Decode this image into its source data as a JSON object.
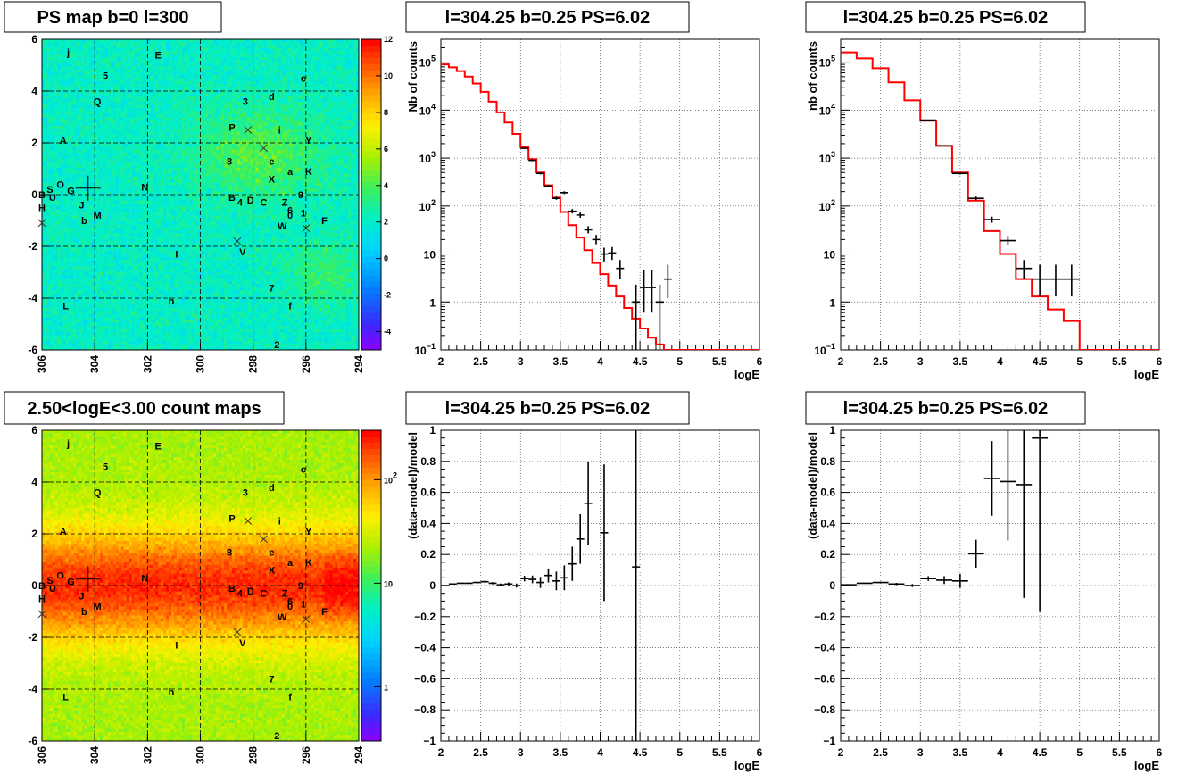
{
  "panels": {
    "ps_map": {
      "title": "PS map b=0 l=300",
      "colorbar_ticks": [
        "12",
        "10",
        "8",
        "6",
        "4",
        "2",
        "0",
        "-2",
        "-4"
      ],
      "colorbar_range": [
        -5,
        12
      ]
    },
    "count_map": {
      "title": "2.50<logE<3.00 count maps",
      "colorbar_ticks": [
        {
          "label": "10",
          "sup": "2",
          "value": 100
        },
        {
          "label": "10",
          "sup": "",
          "value": 10
        },
        {
          "label": "1",
          "sup": "",
          "value": 1
        }
      ],
      "colorbar_range": [
        0.3,
        300
      ]
    },
    "spectrum_a": {
      "title": "l=304.25 b=0.25 PS=6.02",
      "ylabel": "Nb of counts",
      "xlabel": "logE"
    },
    "spectrum_b": {
      "title": "l=304.25 b=0.25 PS=6.02",
      "ylabel": "nb of counts",
      "xlabel": "logE"
    },
    "resid_a": {
      "title": "l=304.25 b=0.25 PS=6.02",
      "ylabel": "(data-model)/model",
      "xlabel": "logE"
    },
    "resid_b": {
      "title": "l=304.25 b=0.25 PS=6.02",
      "ylabel": "(data-model)/model",
      "xlabel": "logE"
    }
  },
  "map_axes": {
    "x_ticks": [
      "306",
      "304",
      "302",
      "300",
      "298",
      "296",
      "294"
    ],
    "y_ticks": [
      "6",
      "4",
      "2",
      "0",
      "-2",
      "-4",
      "-6"
    ],
    "xlim": [
      306,
      294
    ],
    "ylim": [
      -6,
      6
    ]
  },
  "sources": [
    {
      "t": "j",
      "l": 305.0,
      "b": 5.5
    },
    {
      "t": "E",
      "l": 301.6,
      "b": 5.4
    },
    {
      "t": "5",
      "l": 303.6,
      "b": 4.6
    },
    {
      "t": "c",
      "l": 296.1,
      "b": 4.5
    },
    {
      "t": "Q",
      "l": 303.9,
      "b": 3.6
    },
    {
      "t": "3",
      "l": 298.3,
      "b": 3.6
    },
    {
      "t": "d",
      "l": 297.3,
      "b": 3.8
    },
    {
      "t": "P",
      "l": 298.8,
      "b": 2.6
    },
    {
      "t": "i",
      "l": 297.0,
      "b": 2.5
    },
    {
      "t": "A",
      "l": 305.2,
      "b": 2.1
    },
    {
      "t": "Y",
      "l": 295.9,
      "b": 2.1
    },
    {
      "t": "8",
      "l": 298.9,
      "b": 1.3
    },
    {
      "t": "e",
      "l": 297.3,
      "b": 1.3
    },
    {
      "t": "a",
      "l": 296.6,
      "b": 0.9
    },
    {
      "t": "K",
      "l": 295.9,
      "b": 0.9
    },
    {
      "t": "X",
      "l": 297.3,
      "b": 0.6
    },
    {
      "t": "O",
      "l": 305.3,
      "b": 0.4
    },
    {
      "t": "N",
      "l": 302.1,
      "b": 0.3
    },
    {
      "t": "B",
      "l": 306.0,
      "b": 0.0
    },
    {
      "t": "S",
      "l": 305.7,
      "b": 0.2
    },
    {
      "t": "G",
      "l": 304.9,
      "b": 0.15
    },
    {
      "t": "U",
      "l": 305.6,
      "b": -0.1
    },
    {
      "t": "9",
      "l": 296.2,
      "b": 0.0
    },
    {
      "t": "B",
      "l": 298.8,
      "b": -0.1
    },
    {
      "t": "4",
      "l": 298.5,
      "b": -0.3
    },
    {
      "t": "D",
      "l": 298.1,
      "b": -0.2
    },
    {
      "t": "C",
      "l": 297.6,
      "b": -0.3
    },
    {
      "t": "Z",
      "l": 296.8,
      "b": -0.3
    },
    {
      "t": "J",
      "l": 304.5,
      "b": -0.4
    },
    {
      "t": "6",
      "l": 296.6,
      "b": -0.6
    },
    {
      "t": "H",
      "l": 306.0,
      "b": -0.5
    },
    {
      "t": "0",
      "l": 296.6,
      "b": -0.8
    },
    {
      "t": "M",
      "l": 303.9,
      "b": -0.8
    },
    {
      "t": "1",
      "l": 296.1,
      "b": -0.7
    },
    {
      "t": "b",
      "l": 304.4,
      "b": -1.0
    },
    {
      "t": "W",
      "l": 296.9,
      "b": -1.2
    },
    {
      "t": "F",
      "l": 295.3,
      "b": -1.0
    },
    {
      "t": "V",
      "l": 298.4,
      "b": -2.2
    },
    {
      "t": "I",
      "l": 300.9,
      "b": -2.3
    },
    {
      "t": "7",
      "l": 297.3,
      "b": -3.6
    },
    {
      "t": "h",
      "l": 301.1,
      "b": -4.1
    },
    {
      "t": "L",
      "l": 305.1,
      "b": -4.3
    },
    {
      "t": "f",
      "l": 296.6,
      "b": -4.3
    },
    {
      "t": "2",
      "l": 297.1,
      "b": -5.8
    }
  ],
  "crosses": [
    {
      "l": 298.2,
      "b": 2.5
    },
    {
      "l": 297.6,
      "b": 1.8
    },
    {
      "l": 296.0,
      "b": -1.3
    },
    {
      "l": 298.6,
      "b": -1.8
    },
    {
      "l": 306.0,
      "b": -1.1
    }
  ],
  "big_cross": {
    "l": 304.25,
    "b": 0.25
  },
  "chart_data": [
    {
      "type": "heatmap",
      "title": "PS map b=0 l=300",
      "xlim": [
        306,
        294
      ],
      "ylim": [
        -6,
        6
      ],
      "colorscale_range": [
        -5,
        12
      ]
    },
    {
      "type": "heatmap",
      "title": "2.50<logE<3.00 count maps",
      "xlim": [
        306,
        294
      ],
      "ylim": [
        -6,
        6
      ],
      "colorscale": "log",
      "colorscale_range": [
        0.3,
        300
      ]
    },
    {
      "type": "line",
      "title": "l=304.25 b=0.25 PS=6.02",
      "xlabel": "logE",
      "ylabel": "Nb of counts",
      "xlim": [
        2,
        6
      ],
      "ylim": [
        0.1,
        300000
      ],
      "yscale": "log",
      "x_ticks": [
        "2",
        "2.5",
        "3",
        "3.5",
        "4",
        "4.5",
        "5",
        "5.5",
        "6"
      ],
      "y_ticks": [
        {
          "label": "10",
          "sup": "5",
          "v": 100000
        },
        {
          "label": "10",
          "sup": "4",
          "v": 10000
        },
        {
          "label": "10",
          "sup": "3",
          "v": 1000
        },
        {
          "label": "10",
          "sup": "2",
          "v": 100
        },
        {
          "label": "10",
          "sup": "",
          "v": 10
        },
        {
          "label": "1",
          "sup": "",
          "v": 1
        },
        {
          "label": "10",
          "sup": "−1",
          "v": 0.1
        }
      ],
      "bin_width": 0.1,
      "model_bins": [
        2.0,
        2.1,
        2.2,
        2.3,
        2.4,
        2.5,
        2.6,
        2.7,
        2.8,
        2.9,
        3.0,
        3.1,
        3.2,
        3.3,
        3.4,
        3.5,
        3.6,
        3.7,
        3.8,
        3.9,
        4.0,
        4.1,
        4.2,
        4.3,
        4.4,
        4.5,
        4.6,
        4.7,
        4.8,
        4.9,
        5.0,
        5.1,
        5.2,
        5.3,
        5.4,
        5.5,
        5.6,
        5.7,
        5.8,
        5.9
      ],
      "model": [
        90000,
        78000,
        65000,
        50000,
        36000,
        24000,
        15000,
        9000,
        5500,
        3200,
        1700,
        950,
        500,
        270,
        150,
        75,
        40,
        22,
        12,
        6.5,
        3.8,
        2.2,
        1.3,
        0.75,
        0.45,
        0.28,
        0.18,
        0.13,
        0.1,
        0.1,
        0.1,
        0.1,
        0.1,
        0.1,
        0.1,
        0.1,
        0.1,
        0.1,
        0.1,
        0.1
      ],
      "data": [
        {
          "x": 3.05,
          "y": 1600,
          "lo": 1550,
          "hi": 1650
        },
        {
          "x": 3.15,
          "y": 900,
          "lo": 860,
          "hi": 940
        },
        {
          "x": 3.25,
          "y": 480,
          "lo": 455,
          "hi": 505
        },
        {
          "x": 3.35,
          "y": 260,
          "lo": 245,
          "hi": 275
        },
        {
          "x": 3.45,
          "y": 145,
          "lo": 135,
          "hi": 157
        },
        {
          "x": 3.55,
          "y": 190,
          "lo": 178,
          "hi": 203
        },
        {
          "x": 3.65,
          "y": 78,
          "lo": 70,
          "hi": 87
        },
        {
          "x": 3.75,
          "y": 65,
          "lo": 57,
          "hi": 73
        },
        {
          "x": 3.85,
          "y": 32,
          "lo": 27,
          "hi": 38
        },
        {
          "x": 3.95,
          "y": 20,
          "lo": 16,
          "hi": 25
        },
        {
          "x": 4.05,
          "y": 10,
          "lo": 7,
          "hi": 13.5
        },
        {
          "x": 4.15,
          "y": 10.5,
          "lo": 7.5,
          "hi": 14
        },
        {
          "x": 4.25,
          "y": 5,
          "lo": 3,
          "hi": 7.5
        },
        {
          "x": 4.45,
          "y": 1,
          "lo": 0.1,
          "hi": 2.3
        },
        {
          "x": 4.55,
          "y": 2,
          "lo": 0.6,
          "hi": 4.6
        },
        {
          "x": 4.65,
          "y": 2,
          "lo": 0.6,
          "hi": 4.6
        },
        {
          "x": 4.75,
          "y": 1,
          "lo": 0.1,
          "hi": 2.3
        },
        {
          "x": 4.85,
          "y": 3,
          "lo": 1.2,
          "hi": 6
        }
      ]
    },
    {
      "type": "line",
      "title": "l=304.25 b=0.25 PS=6.02",
      "xlabel": "logE",
      "ylabel": "nb of counts",
      "xlim": [
        2,
        6
      ],
      "ylim": [
        0.1,
        300000
      ],
      "yscale": "log",
      "x_ticks": [
        "2",
        "2.5",
        "3",
        "3.5",
        "4",
        "4.5",
        "5",
        "5.5",
        "6"
      ],
      "y_ticks": [
        {
          "label": "10",
          "sup": "5",
          "v": 100000
        },
        {
          "label": "10",
          "sup": "4",
          "v": 10000
        },
        {
          "label": "10",
          "sup": "3",
          "v": 1000
        },
        {
          "label": "10",
          "sup": "2",
          "v": 100
        },
        {
          "label": "10",
          "sup": "",
          "v": 10
        },
        {
          "label": "1",
          "sup": "",
          "v": 1
        },
        {
          "label": "10",
          "sup": "−1",
          "v": 0.1
        }
      ],
      "bin_width": 0.2,
      "model_bins": [
        2.0,
        2.2,
        2.4,
        2.6,
        2.8,
        3.0,
        3.2,
        3.4,
        3.6,
        3.8,
        4.0,
        4.2,
        4.4,
        4.6,
        4.8,
        5.0,
        5.2,
        5.4,
        5.6,
        5.8
      ],
      "model": [
        160000,
        120000,
        75000,
        38000,
        16000,
        6000,
        1800,
        500,
        130,
        30,
        10,
        3,
        1.3,
        0.7,
        0.4,
        0.1,
        0.1,
        0.1,
        0.1,
        0.1
      ],
      "data": [
        {
          "x": 3.1,
          "y": 6200,
          "lo": 6050,
          "hi": 6350
        },
        {
          "x": 3.3,
          "y": 1800,
          "lo": 1740,
          "hi": 1860
        },
        {
          "x": 3.5,
          "y": 480,
          "lo": 455,
          "hi": 505
        },
        {
          "x": 3.7,
          "y": 145,
          "lo": 132,
          "hi": 158
        },
        {
          "x": 3.9,
          "y": 52,
          "lo": 45,
          "hi": 60
        },
        {
          "x": 4.1,
          "y": 19,
          "lo": 15,
          "hi": 24
        },
        {
          "x": 4.3,
          "y": 5,
          "lo": 3,
          "hi": 7.5
        },
        {
          "x": 4.5,
          "y": 3,
          "lo": 1.3,
          "hi": 6
        },
        {
          "x": 4.7,
          "y": 3,
          "lo": 1.3,
          "hi": 6
        },
        {
          "x": 4.9,
          "y": 3,
          "lo": 1.3,
          "hi": 6
        }
      ]
    },
    {
      "type": "scatter",
      "title": "l=304.25 b=0.25 PS=6.02",
      "xlabel": "logE",
      "ylabel": "(data-model)/model",
      "xlim": [
        2,
        6
      ],
      "ylim": [
        -1,
        1
      ],
      "x_ticks": [
        "2",
        "2.5",
        "3",
        "3.5",
        "4",
        "4.5",
        "5",
        "5.5",
        "6"
      ],
      "y_ticks": [
        "1",
        "0.8",
        "0.6",
        "0.4",
        "0.2",
        "0",
        "−0.2",
        "−0.4",
        "−0.6",
        "−0.8",
        "−1"
      ],
      "bin_width": 0.1,
      "data": [
        {
          "x": 2.05,
          "y": 0.0,
          "e": 0.003
        },
        {
          "x": 2.15,
          "y": 0.01,
          "e": 0.003
        },
        {
          "x": 2.25,
          "y": 0.015,
          "e": 0.004
        },
        {
          "x": 2.35,
          "y": 0.015,
          "e": 0.004
        },
        {
          "x": 2.45,
          "y": 0.02,
          "e": 0.005
        },
        {
          "x": 2.55,
          "y": 0.025,
          "e": 0.006
        },
        {
          "x": 2.65,
          "y": 0.015,
          "e": 0.007
        },
        {
          "x": 2.75,
          "y": 0.005,
          "e": 0.008
        },
        {
          "x": 2.85,
          "y": 0.01,
          "e": 0.01
        },
        {
          "x": 2.95,
          "y": 0.0,
          "e": 0.013
        },
        {
          "x": 3.05,
          "y": 0.045,
          "e": 0.018
        },
        {
          "x": 3.15,
          "y": 0.04,
          "e": 0.025
        },
        {
          "x": 3.25,
          "y": 0.02,
          "e": 0.035
        },
        {
          "x": 3.35,
          "y": 0.065,
          "e": 0.045
        },
        {
          "x": 3.45,
          "y": 0.03,
          "e": 0.06
        },
        {
          "x": 3.55,
          "y": 0.05,
          "e": 0.08
        },
        {
          "x": 3.65,
          "y": 0.14,
          "e": 0.11
        },
        {
          "x": 3.75,
          "y": 0.3,
          "e": 0.16
        },
        {
          "x": 3.85,
          "y": 0.53,
          "e": 0.27
        },
        {
          "x": 4.05,
          "y": 0.34,
          "e": 0.44
        },
        {
          "x": 4.45,
          "y": 0.12,
          "e": 1.12
        }
      ]
    },
    {
      "type": "scatter",
      "title": "l=304.25 b=0.25 PS=6.02",
      "xlabel": "logE",
      "ylabel": "(data-model)/model",
      "xlim": [
        2,
        6
      ],
      "ylim": [
        -1,
        1
      ],
      "x_ticks": [
        "2",
        "2.5",
        "3",
        "3.5",
        "4",
        "4.5",
        "5",
        "5.5",
        "6"
      ],
      "y_ticks": [
        "1",
        "0.8",
        "0.6",
        "0.4",
        "0.2",
        "0",
        "−0.2",
        "−0.4",
        "−0.6",
        "−0.8",
        "−1"
      ],
      "bin_width": 0.2,
      "data": [
        {
          "x": 2.1,
          "y": 0.005,
          "e": 0.003
        },
        {
          "x": 2.3,
          "y": 0.015,
          "e": 0.004
        },
        {
          "x": 2.5,
          "y": 0.02,
          "e": 0.005
        },
        {
          "x": 2.7,
          "y": 0.01,
          "e": 0.007
        },
        {
          "x": 2.9,
          "y": 0.0,
          "e": 0.01
        },
        {
          "x": 3.1,
          "y": 0.045,
          "e": 0.015
        },
        {
          "x": 3.3,
          "y": 0.035,
          "e": 0.025
        },
        {
          "x": 3.5,
          "y": 0.03,
          "e": 0.045
        },
        {
          "x": 3.7,
          "y": 0.205,
          "e": 0.09
        },
        {
          "x": 3.9,
          "y": 0.69,
          "e": 0.24
        },
        {
          "x": 4.1,
          "y": 0.67,
          "e": 0.38
        },
        {
          "x": 4.3,
          "y": 0.65,
          "e": 0.73
        },
        {
          "x": 4.5,
          "y": 0.95,
          "e": 1.12
        }
      ]
    }
  ]
}
